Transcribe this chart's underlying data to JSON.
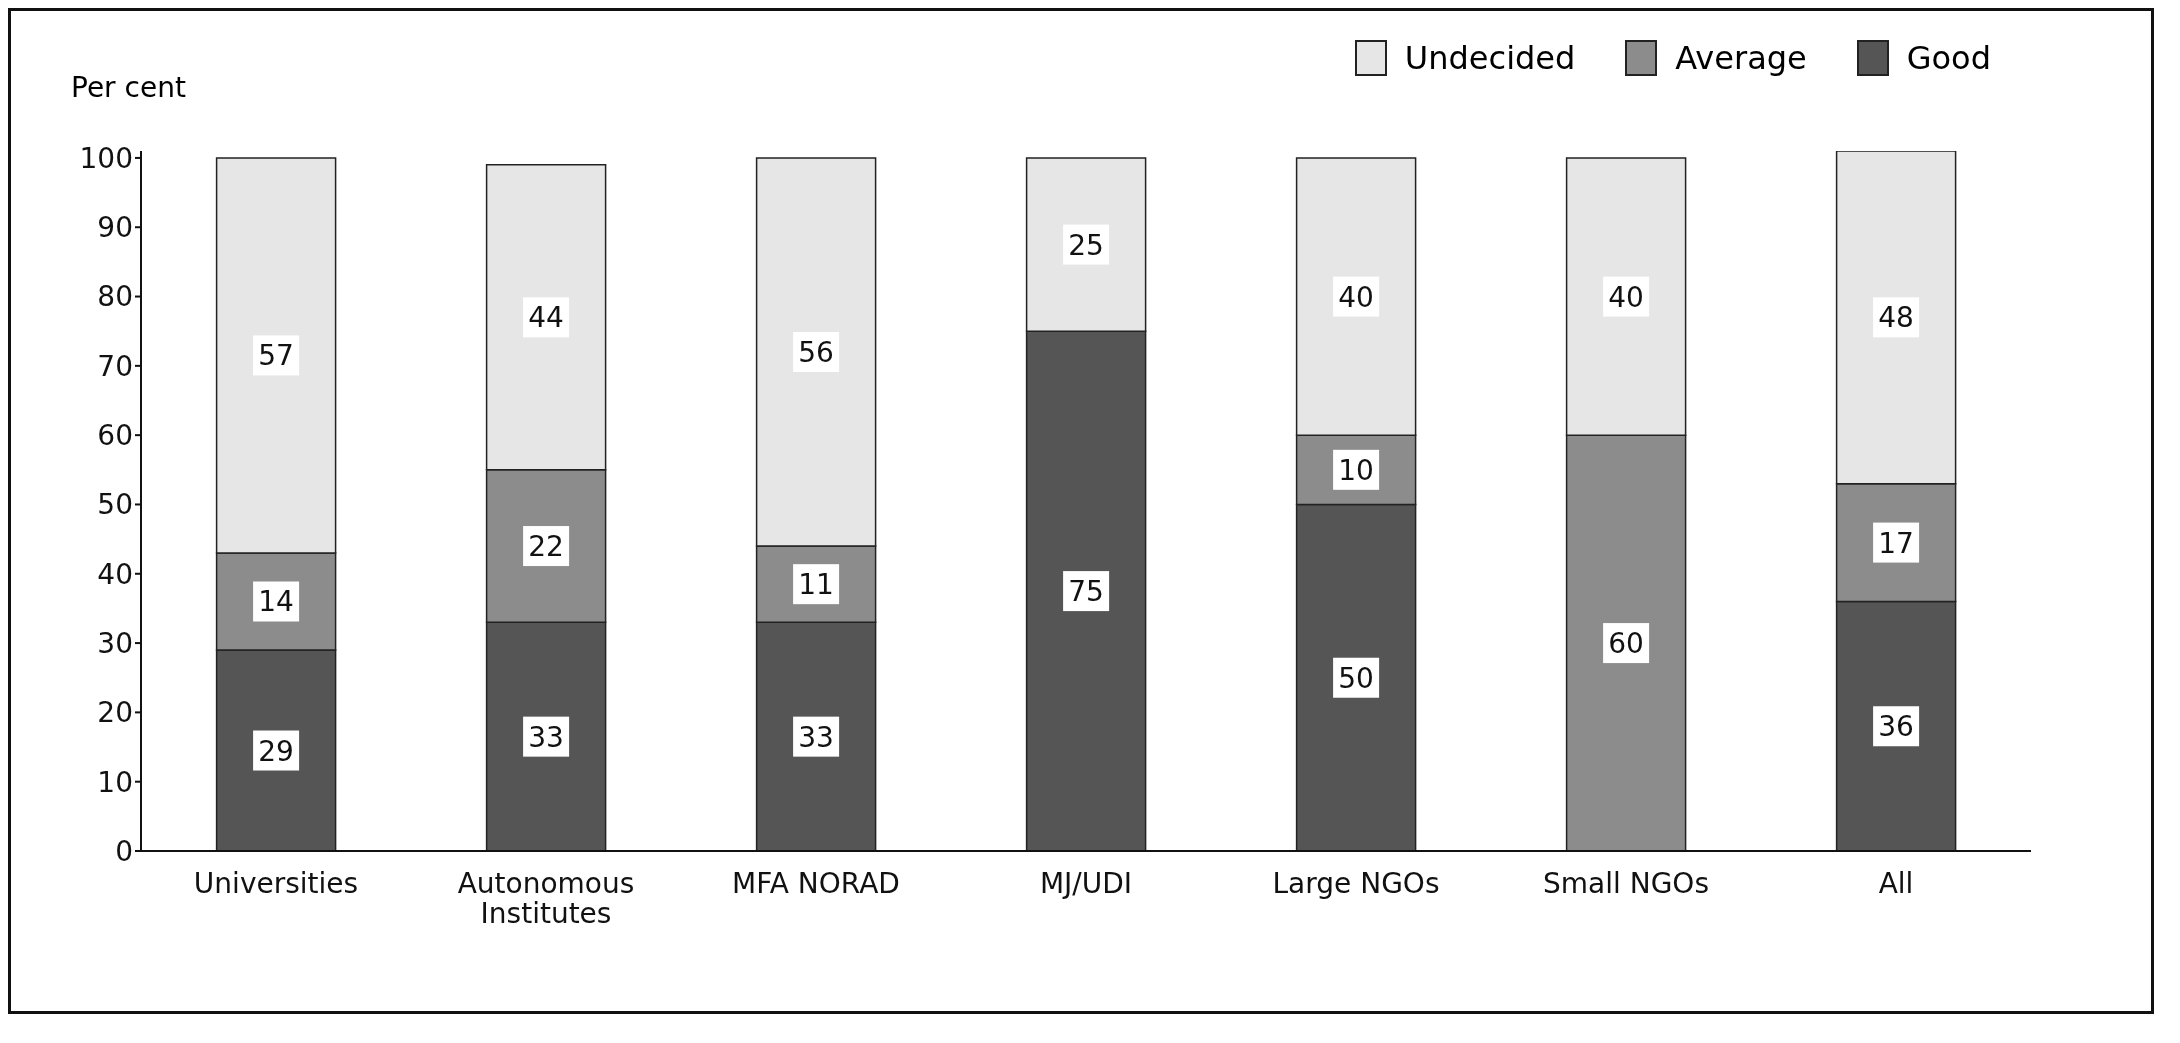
{
  "chart_data": {
    "type": "bar",
    "stacked": true,
    "ylabel": "Per cent",
    "categories": [
      "Universities",
      "Autonomous Institutes",
      "MFA NORAD",
      "MJ/UDI",
      "Large NGOs",
      "Small NGOs",
      "All"
    ],
    "series": [
      {
        "name": "Good",
        "color": "#555555",
        "values": [
          29,
          33,
          33,
          75,
          50,
          0,
          36
        ],
        "value_labels": [
          "29",
          "33",
          "33",
          "75",
          "50",
          null,
          "36"
        ]
      },
      {
        "name": "Average",
        "color": "#8c8c8c",
        "values": [
          14,
          22,
          11,
          0,
          10,
          60,
          17
        ],
        "value_labels": [
          "14",
          "22",
          "11",
          null,
          "10",
          "60",
          "17"
        ]
      },
      {
        "name": "Undecided",
        "color": "#e6e6e6",
        "values": [
          57,
          44,
          56,
          25,
          40,
          40,
          48
        ],
        "value_labels": [
          "57",
          "44",
          "56",
          "25",
          "40",
          "40",
          "48"
        ]
      }
    ],
    "ylim": [
      0,
      101
    ],
    "yticks": [
      0,
      10,
      20,
      30,
      40,
      50,
      60,
      70,
      80,
      90,
      100
    ],
    "legend": "top right"
  }
}
